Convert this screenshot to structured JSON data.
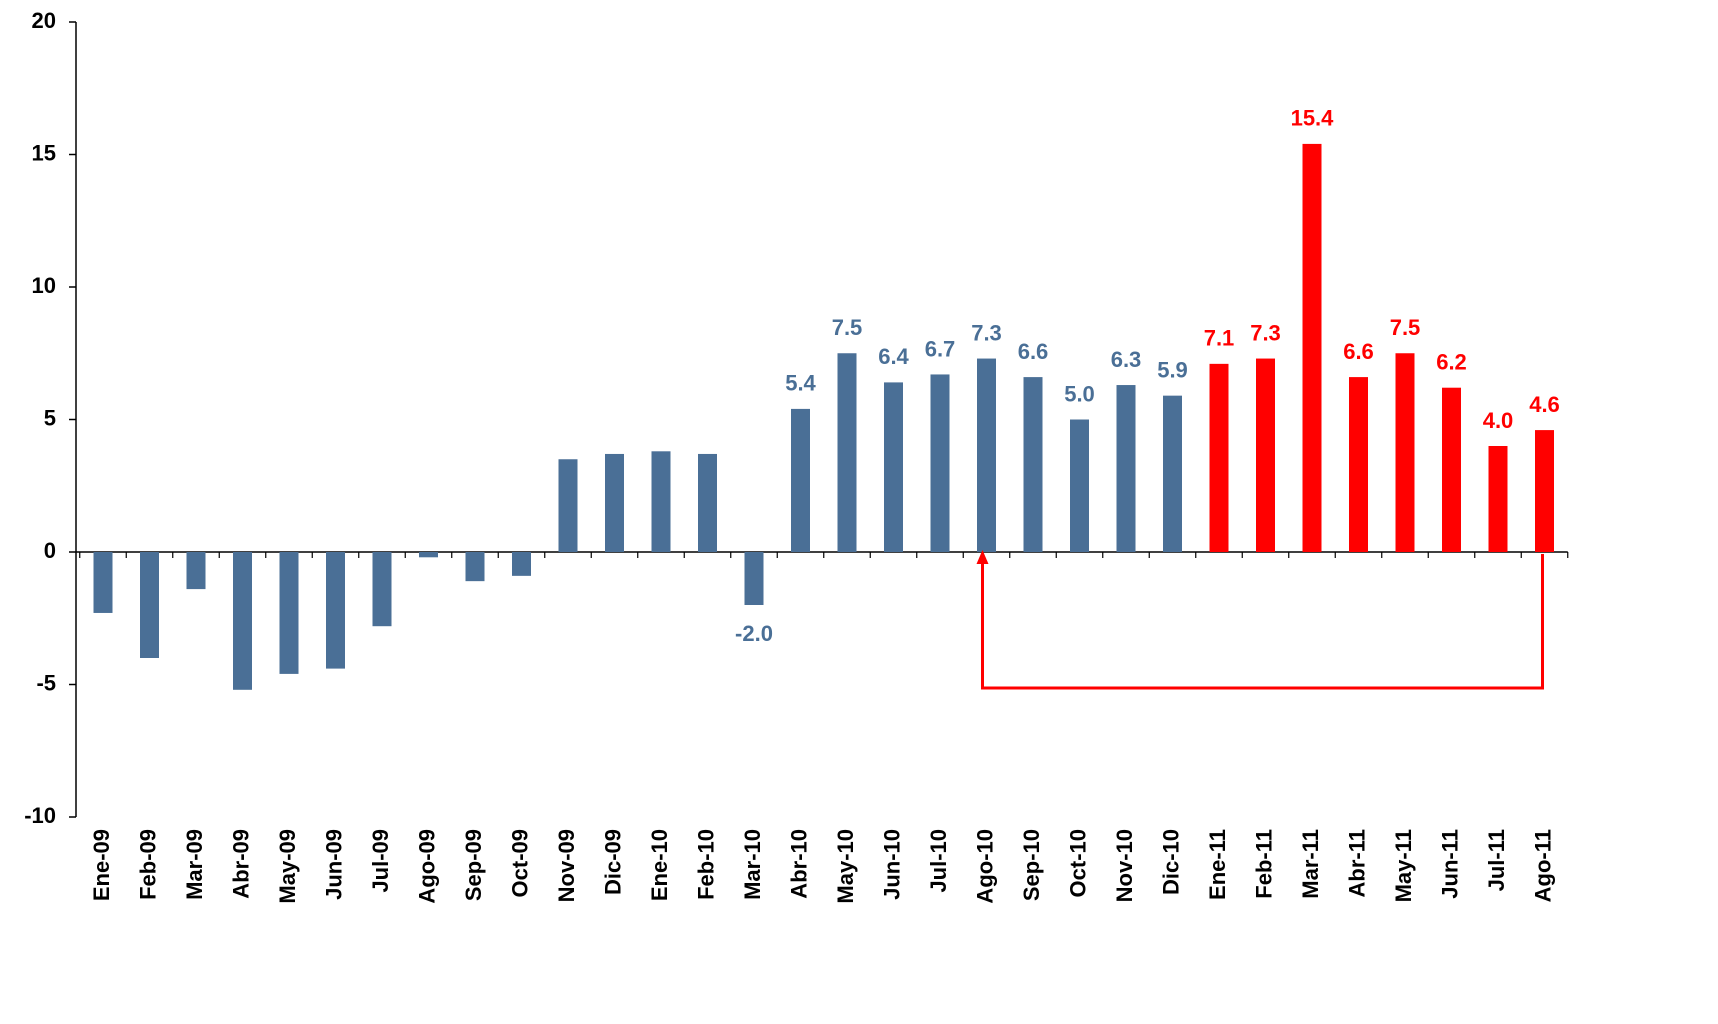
{
  "chart_data": {
    "type": "bar",
    "categories": [
      "Ene-09",
      "Feb-09",
      "Mar-09",
      "Abr-09",
      "May-09",
      "Jun-09",
      "Jul-09",
      "Ago-09",
      "Sep-09",
      "Oct-09",
      "Nov-09",
      "Dic-09",
      "Ene-10",
      "Feb-10",
      "Mar-10",
      "Abr-10",
      "May-10",
      "Jun-10",
      "Jul-10",
      "Ago-10",
      "Sep-10",
      "Oct-10",
      "Nov-10",
      "Dic-10",
      "Ene-11",
      "Feb-11",
      "Mar-11",
      "Abr-11",
      "May-11",
      "Jun-11",
      "Jul-11",
      "Ago-11"
    ],
    "values": [
      -2.3,
      -4.0,
      -1.4,
      -5.2,
      -4.6,
      -4.4,
      -2.8,
      -0.2,
      -1.1,
      -0.9,
      3.5,
      3.7,
      3.8,
      3.7,
      -2.0,
      5.4,
      7.5,
      6.4,
      6.7,
      7.3,
      6.6,
      5.0,
      6.3,
      5.9,
      7.1,
      7.3,
      15.4,
      6.6,
      7.5,
      6.2,
      4.0,
      4.6
    ],
    "value_labels": [
      null,
      null,
      null,
      null,
      null,
      null,
      null,
      null,
      null,
      null,
      null,
      null,
      null,
      null,
      "-2.0",
      "5.4",
      "7.5",
      "6.4",
      "6.7",
      "7.3",
      "6.6",
      "5.0",
      "6.3",
      "5.9",
      "7.1",
      "7.3",
      "15.4",
      "6.6",
      "7.5",
      "6.2",
      "4.0",
      "4.6"
    ],
    "colors": [
      "#4a6f96",
      "#4a6f96",
      "#4a6f96",
      "#4a6f96",
      "#4a6f96",
      "#4a6f96",
      "#4a6f96",
      "#4a6f96",
      "#4a6f96",
      "#4a6f96",
      "#4a6f96",
      "#4a6f96",
      "#4a6f96",
      "#4a6f96",
      "#4a6f96",
      "#4a6f96",
      "#4a6f96",
      "#4a6f96",
      "#4a6f96",
      "#4a6f96",
      "#4a6f96",
      "#4a6f96",
      "#4a6f96",
      "#4a6f96",
      "#ff0000",
      "#ff0000",
      "#ff0000",
      "#ff0000",
      "#ff0000",
      "#ff0000",
      "#ff0000",
      "#ff0000"
    ],
    "ylim": [
      -10,
      20
    ],
    "yticks": [
      -10,
      -5,
      0,
      5,
      10,
      15,
      20
    ]
  }
}
